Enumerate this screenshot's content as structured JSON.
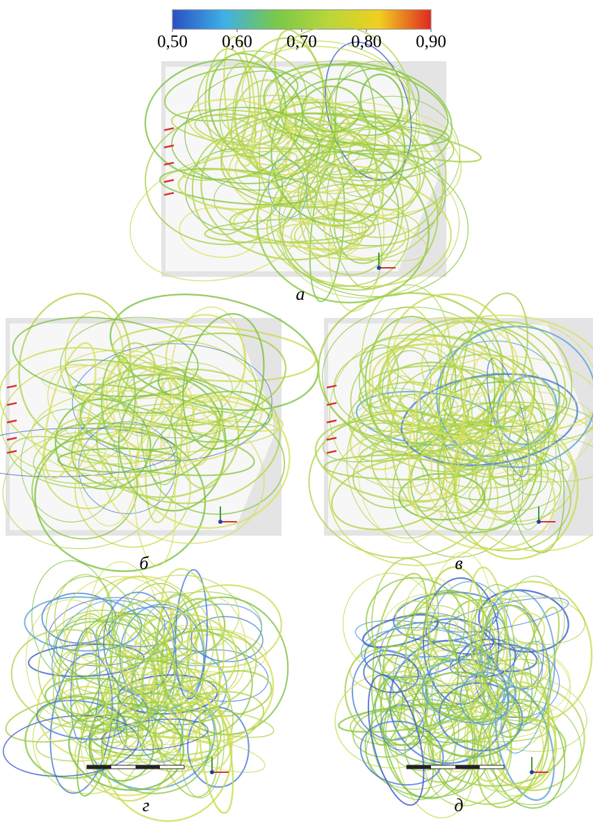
{
  "colorbar": {
    "colors": [
      "#2a4fc4",
      "#3fb0e6",
      "#78c84a",
      "#b8d63a",
      "#f0d020",
      "#e02820"
    ],
    "lim": [
      0.5,
      0.9
    ],
    "ticks": [
      {
        "value": 0.5,
        "label": "0,50"
      },
      {
        "value": 0.6,
        "label": "0,60"
      },
      {
        "value": 0.7,
        "label": "0,70"
      },
      {
        "value": 0.8,
        "label": "0,80"
      },
      {
        "value": 0.9,
        "label": "0,90"
      }
    ]
  },
  "panels": [
    {
      "label": "а"
    },
    {
      "label": "б"
    },
    {
      "label": "в"
    },
    {
      "label": "г"
    },
    {
      "label": "д"
    }
  ]
}
